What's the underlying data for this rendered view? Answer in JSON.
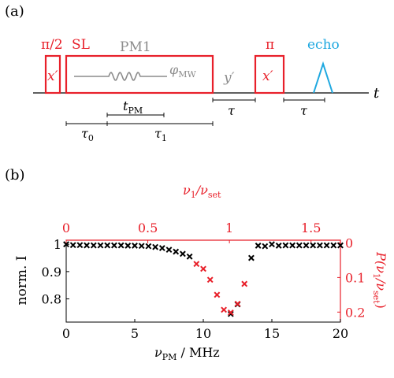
{
  "panel_a": {
    "label": "(a)",
    "pulse_pi2": "π/2",
    "pulse_pi2_phase": "x′",
    "sl_label": "SL",
    "pm_label": "PM1",
    "phi_label": "φ",
    "phi_sub": "MW",
    "y_phase": "y′",
    "pi_label": "π",
    "pi_phase": "x′",
    "echo_label": "echo",
    "t_axis": "t",
    "tau_label": "τ",
    "tau_label2": "τ",
    "tpm_main": "t",
    "tpm_sub": "PM",
    "tau0_main": "τ",
    "tau0_sub": "0",
    "tau1_main": "τ",
    "tau1_sub": "1",
    "colors": {
      "red": "#e8202a",
      "gray": "#8c8c8c",
      "blue": "#1ea8e0"
    }
  },
  "panel_b": {
    "label": "(b)"
  },
  "chart_data": {
    "type": "scatter",
    "xlabel_main": "ν",
    "xlabel_sub": "PM",
    "xlabel_unit": " / MHz",
    "ylabel": "norm. I",
    "ylabel_right_pre": "P(ν",
    "ylabel_right_sub1": "1",
    "ylabel_right_mid": "/ν",
    "ylabel_right_sub2": "set",
    "ylabel_right_post": ")",
    "top_axis_label_main": "ν",
    "top_axis_label_sub1": "1",
    "top_axis_label_mid": "/ν",
    "top_axis_label_sub2": "set",
    "xlim": [
      0,
      20
    ],
    "ylim": [
      0.715,
      1.015
    ],
    "x_ticks": [
      0,
      5,
      10,
      15,
      20
    ],
    "x_tick_labels": [
      "0",
      "5",
      "10",
      "15",
      "20"
    ],
    "y_ticks": [
      0.8,
      0.9,
      1.0
    ],
    "y_tick_labels": [
      "0.8",
      "0.9",
      "1"
    ],
    "top_ticks": [
      0,
      0.5,
      1,
      1.5
    ],
    "top_tick_labels": [
      "0",
      "0.5",
      "1",
      "1.5"
    ],
    "top_xlim": [
      0,
      1.68
    ],
    "right_ticks": [
      0,
      0.1,
      0.2
    ],
    "right_tick_labels": [
      "0",
      "0.1",
      "0.2"
    ],
    "right_ylim": [
      -0.0079,
      0.2289
    ],
    "grid": false,
    "series": [
      {
        "color": "#000000",
        "points": [
          [
            0.0,
            1.0
          ],
          [
            0.5,
            0.997
          ],
          [
            1.0,
            0.997
          ],
          [
            1.5,
            0.996
          ],
          [
            2.0,
            0.996
          ],
          [
            2.5,
            0.996
          ],
          [
            3.0,
            0.996
          ],
          [
            3.5,
            0.996
          ],
          [
            4.0,
            0.996
          ],
          [
            4.5,
            0.995
          ],
          [
            5.0,
            0.995
          ],
          [
            5.5,
            0.994
          ],
          [
            6.0,
            0.993
          ],
          [
            6.5,
            0.99
          ],
          [
            7.0,
            0.986
          ],
          [
            7.5,
            0.98
          ],
          [
            8.0,
            0.973
          ],
          [
            8.5,
            0.965
          ],
          [
            9.0,
            0.955
          ],
          [
            12.0,
            0.745
          ],
          [
            12.5,
            0.78
          ],
          [
            13.5,
            0.95
          ],
          [
            14.0,
            0.995
          ],
          [
            14.5,
            0.993
          ],
          [
            15.0,
            1.0
          ],
          [
            15.5,
            0.995
          ],
          [
            16.0,
            0.996
          ],
          [
            16.5,
            0.996
          ],
          [
            17.0,
            0.996
          ],
          [
            17.5,
            0.996
          ],
          [
            18.0,
            0.996
          ],
          [
            18.5,
            0.996
          ],
          [
            19.0,
            0.996
          ],
          [
            19.5,
            0.996
          ],
          [
            20.0,
            0.996
          ]
        ]
      },
      {
        "color": "#e8202a",
        "points": [
          [
            9.5,
            0.928
          ],
          [
            10.0,
            0.91
          ],
          [
            10.5,
            0.87
          ],
          [
            11.0,
            0.815
          ],
          [
            11.5,
            0.76
          ],
          [
            12.0,
            0.75
          ],
          [
            12.5,
            0.782
          ],
          [
            13.0,
            0.855
          ]
        ]
      }
    ]
  }
}
